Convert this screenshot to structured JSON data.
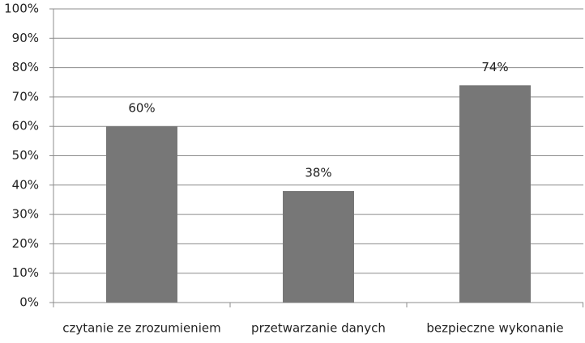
{
  "chart_data": {
    "type": "bar",
    "categories": [
      "czytanie ze zrozumieniem",
      "przetwarzanie danych",
      "bezpieczne wykonanie"
    ],
    "values": [
      60,
      38,
      74
    ],
    "value_labels": [
      "60%",
      "38%",
      "74%"
    ],
    "color": "#777777",
    "ylim": [
      0,
      100
    ],
    "yticks": [
      {
        "value": 0,
        "label": "0%"
      },
      {
        "value": 10,
        "label": "10%"
      },
      {
        "value": 20,
        "label": "20%"
      },
      {
        "value": 30,
        "label": "30%"
      },
      {
        "value": 40,
        "label": "40%"
      },
      {
        "value": 50,
        "label": "50%"
      },
      {
        "value": 60,
        "label": "60%"
      },
      {
        "value": 70,
        "label": "70%"
      },
      {
        "value": 80,
        "label": "80%"
      },
      {
        "value": 90,
        "label": "90%"
      },
      {
        "value": 100,
        "label": "100%"
      }
    ],
    "grid": true
  }
}
